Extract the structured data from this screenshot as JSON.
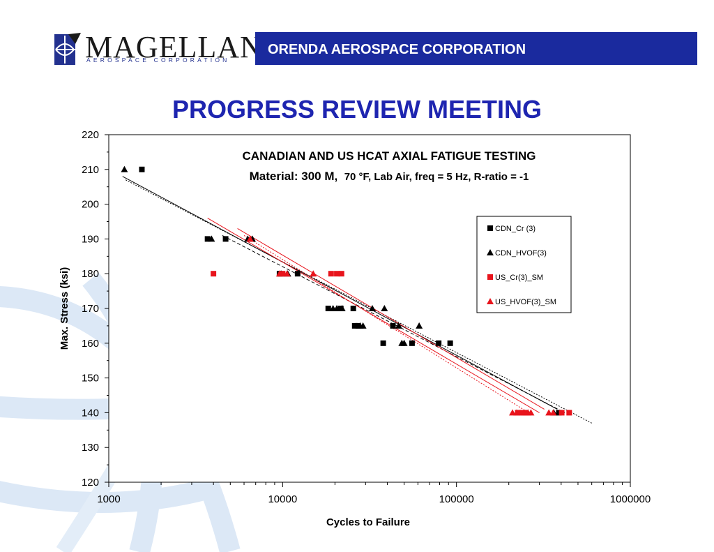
{
  "header": {
    "logo_text": "MAGELLAN",
    "logo_subtext": "AEROSPACE CORPORATION",
    "banner_text": "ORENDA AEROSPACE CORPORATION"
  },
  "page_title": "PROGRESS REVIEW MEETING",
  "colors": {
    "banner": "#1a2a9e",
    "title": "#1e25b0",
    "us_series": "#e8141c",
    "cdn_series": "#000000"
  },
  "chart_data": {
    "type": "scatter",
    "title": "CANADIAN AND US HCAT AXIAL FATIGUE TESTING",
    "subtitle_main": "Material: 300 M,",
    "subtitle_rest": "70 °F, Lab Air, freq = 5 Hz, R-ratio = -1",
    "xlabel": "Cycles to Failure",
    "ylabel": "Max. Stress (ksi)",
    "xscale": "log",
    "xlim": [
      1000,
      1000000
    ],
    "ylim": [
      120,
      220
    ],
    "xticks": [
      "1000",
      "10000",
      "100000",
      "1000000"
    ],
    "yticks": [
      "120",
      "130",
      "140",
      "150",
      "160",
      "170",
      "180",
      "190",
      "200",
      "210",
      "220"
    ],
    "legend_position": "right",
    "series": [
      {
        "name": "CDN_Cr (3)",
        "marker": "square",
        "color": "#000000",
        "points": [
          [
            1550,
            210
          ],
          [
            3700,
            190
          ],
          [
            4700,
            190
          ],
          [
            9600,
            180
          ],
          [
            12200,
            180
          ],
          [
            18300,
            170
          ],
          [
            21600,
            170
          ],
          [
            25500,
            170
          ],
          [
            26000,
            165
          ],
          [
            27200,
            165
          ],
          [
            37900,
            160
          ],
          [
            43100,
            165
          ],
          [
            55500,
            160
          ],
          [
            79000,
            160
          ],
          [
            92000,
            160
          ],
          [
            388000,
            140
          ]
        ]
      },
      {
        "name": "CDN_HVOF(3)",
        "marker": "triangle",
        "color": "#000000",
        "points": [
          [
            1230,
            210
          ],
          [
            3900,
            190
          ],
          [
            6300,
            190
          ],
          [
            6700,
            190
          ],
          [
            9800,
            180
          ],
          [
            10700,
            180
          ],
          [
            19500,
            170
          ],
          [
            20500,
            170
          ],
          [
            22000,
            170
          ],
          [
            27900,
            165
          ],
          [
            29000,
            165
          ],
          [
            32800,
            170
          ],
          [
            38500,
            170
          ],
          [
            46500,
            165
          ],
          [
            48500,
            160
          ],
          [
            50000,
            160
          ],
          [
            61000,
            165
          ],
          [
            363000,
            140
          ]
        ]
      },
      {
        "name": "US_Cr(3)_SM",
        "marker": "square",
        "color": "#e8141c",
        "points": [
          [
            4000,
            180
          ],
          [
            10000,
            180
          ],
          [
            19000,
            180
          ],
          [
            20500,
            180
          ],
          [
            21800,
            180
          ],
          [
            225000,
            140
          ],
          [
            238000,
            140
          ],
          [
            250000,
            140
          ],
          [
            403000,
            140
          ],
          [
            445000,
            140
          ]
        ]
      },
      {
        "name": "US_HVOF(3)_SM",
        "marker": "triangle",
        "color": "#e8141c",
        "points": [
          [
            6500,
            190
          ],
          [
            9600,
            180
          ],
          [
            10600,
            180
          ],
          [
            15000,
            180
          ],
          [
            210000,
            140
          ],
          [
            222000,
            140
          ],
          [
            245000,
            140
          ],
          [
            258000,
            140
          ],
          [
            268000,
            140
          ],
          [
            340000,
            140
          ],
          [
            360000,
            140
          ]
        ]
      }
    ],
    "trendlines": [
      {
        "color": "#000000",
        "dash": "",
        "from": [
          1200,
          208
        ],
        "to": [
          380000,
          141
        ]
      },
      {
        "color": "#000000",
        "dash": "2,2",
        "from": [
          1250,
          207
        ],
        "to": [
          600000,
          137
        ]
      },
      {
        "color": "#000000",
        "dash": "5,3",
        "from": [
          4500,
          191
        ],
        "to": [
          420000,
          140
        ]
      },
      {
        "color": "#e8141c",
        "dash": "",
        "from": [
          3700,
          196
        ],
        "to": [
          300000,
          140
        ]
      },
      {
        "color": "#e8141c",
        "dash": "2,2",
        "from": [
          6000,
          191
        ],
        "to": [
          260000,
          140
        ]
      },
      {
        "color": "#e8141c",
        "dash": "",
        "from": [
          5500,
          193
        ],
        "to": [
          320000,
          141
        ]
      }
    ]
  }
}
